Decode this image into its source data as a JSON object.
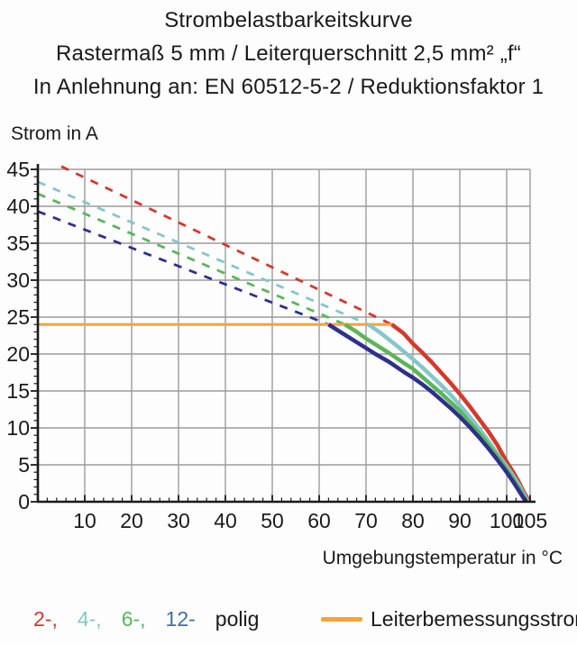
{
  "title": {
    "line1": "Strombelastbarkeitskurve",
    "line2": "Rastermaß 5 mm / Leiterquerschnitt 2,5 mm² „f“",
    "line3": "In Anlehnung an: EN 60512-5-2 / Reduktionsfaktor 1"
  },
  "chart_data": {
    "type": "line",
    "title": "Strombelastbarkeitskurve",
    "ylabel": "Strom in A",
    "xlabel": "Umgebungstemperatur in °C",
    "xlim": [
      0,
      105
    ],
    "ylim": [
      0,
      45
    ],
    "x_ticks": [
      10,
      20,
      30,
      40,
      50,
      60,
      70,
      80,
      90,
      100,
      105
    ],
    "y_ticks": [
      0,
      5,
      10,
      15,
      20,
      25,
      30,
      35,
      40,
      45
    ],
    "x_minor_step": 2,
    "y_minor_step": 1,
    "grid": true,
    "grid_color": "#9c9c9c",
    "axis_color": "#1a1a1a",
    "series": [
      {
        "name": "2-polig",
        "color": "#d6382a",
        "dashed": [
          [
            5,
            45.4
          ],
          [
            75.5,
            24
          ]
        ],
        "solid": [
          [
            75.5,
            24
          ],
          [
            78,
            22.8
          ],
          [
            80,
            21.4
          ],
          [
            82,
            20.2
          ],
          [
            84,
            18.9
          ],
          [
            86,
            17.5
          ],
          [
            88,
            16.1
          ],
          [
            90,
            14.6
          ],
          [
            92,
            13.0
          ],
          [
            94,
            11.3
          ],
          [
            96,
            9.6
          ],
          [
            98,
            7.7
          ],
          [
            100,
            5.4
          ],
          [
            101.5,
            3.9
          ],
          [
            102.5,
            2.8
          ],
          [
            103.5,
            1.5
          ],
          [
            104.3,
            0.6
          ],
          [
            104.8,
            0
          ]
        ]
      },
      {
        "name": "4-polig",
        "color": "#85c7ca",
        "dashed": [
          [
            0,
            43.3
          ],
          [
            70.5,
            24
          ]
        ],
        "solid": [
          [
            70.5,
            24
          ],
          [
            73,
            22.9
          ],
          [
            75,
            21.9
          ],
          [
            77,
            20.9
          ],
          [
            80,
            19.3
          ],
          [
            82,
            18.2
          ],
          [
            84,
            17.0
          ],
          [
            86,
            15.8
          ],
          [
            88,
            14.5
          ],
          [
            90,
            13.1
          ],
          [
            92,
            11.6
          ],
          [
            94,
            10.0
          ],
          [
            96,
            8.3
          ],
          [
            98,
            6.5
          ],
          [
            100,
            4.8
          ],
          [
            101.5,
            3.4
          ],
          [
            102.7,
            2.2
          ],
          [
            103.6,
            1.1
          ],
          [
            104.6,
            0
          ]
        ]
      },
      {
        "name": "6-polig",
        "color": "#5bb65a",
        "dashed": [
          [
            0,
            41.7
          ],
          [
            65.5,
            24
          ]
        ],
        "solid": [
          [
            65.5,
            24
          ],
          [
            68,
            23.0
          ],
          [
            70,
            22.1
          ],
          [
            72,
            21.3
          ],
          [
            75,
            20.1
          ],
          [
            78,
            18.8
          ],
          [
            80,
            18.0
          ],
          [
            82,
            16.9
          ],
          [
            84,
            15.8
          ],
          [
            86,
            14.7
          ],
          [
            88,
            13.5
          ],
          [
            90,
            12.3
          ],
          [
            92,
            10.8
          ],
          [
            94,
            9.4
          ],
          [
            96,
            7.8
          ],
          [
            98,
            6.2
          ],
          [
            100,
            4.4
          ],
          [
            101.5,
            3.0
          ],
          [
            102.7,
            1.8
          ],
          [
            103.6,
            0.8
          ],
          [
            104.4,
            0
          ]
        ]
      },
      {
        "name": "12-polig",
        "color": "#2f2f8f",
        "dashed": [
          [
            0,
            39.3
          ],
          [
            62,
            24
          ]
        ],
        "solid": [
          [
            62,
            24
          ],
          [
            64,
            23.2
          ],
          [
            66,
            22.4
          ],
          [
            68,
            21.6
          ],
          [
            70,
            20.8
          ],
          [
            72,
            20.0
          ],
          [
            75,
            18.9
          ],
          [
            78,
            17.6
          ],
          [
            80,
            16.8
          ],
          [
            82,
            15.9
          ],
          [
            84,
            14.9
          ],
          [
            86,
            13.8
          ],
          [
            88,
            12.7
          ],
          [
            90,
            11.5
          ],
          [
            92,
            10.2
          ],
          [
            94,
            8.8
          ],
          [
            96,
            7.3
          ],
          [
            98,
            5.7
          ],
          [
            100,
            4.0
          ],
          [
            101.5,
            2.6
          ],
          [
            102.6,
            1.5
          ],
          [
            103.5,
            0.6
          ],
          [
            104.1,
            0
          ]
        ]
      }
    ],
    "reference_line": {
      "name": "Leiterbemessungsstrom",
      "color": "#f5a43c",
      "value": 24,
      "x_range": [
        0,
        76
      ]
    }
  },
  "legend": {
    "pole_items": [
      {
        "label": "2-,",
        "color": "#d6382a"
      },
      {
        "label": "4-,",
        "color": "#85c7ca"
      },
      {
        "label": "6-,",
        "color": "#5bb65a"
      },
      {
        "label": "12-",
        "color": "#3e6fa8"
      }
    ],
    "suffix": "polig",
    "rated_current_label": "Leiterbemessungsstrom",
    "rated_current_color": "#f5a43c"
  }
}
